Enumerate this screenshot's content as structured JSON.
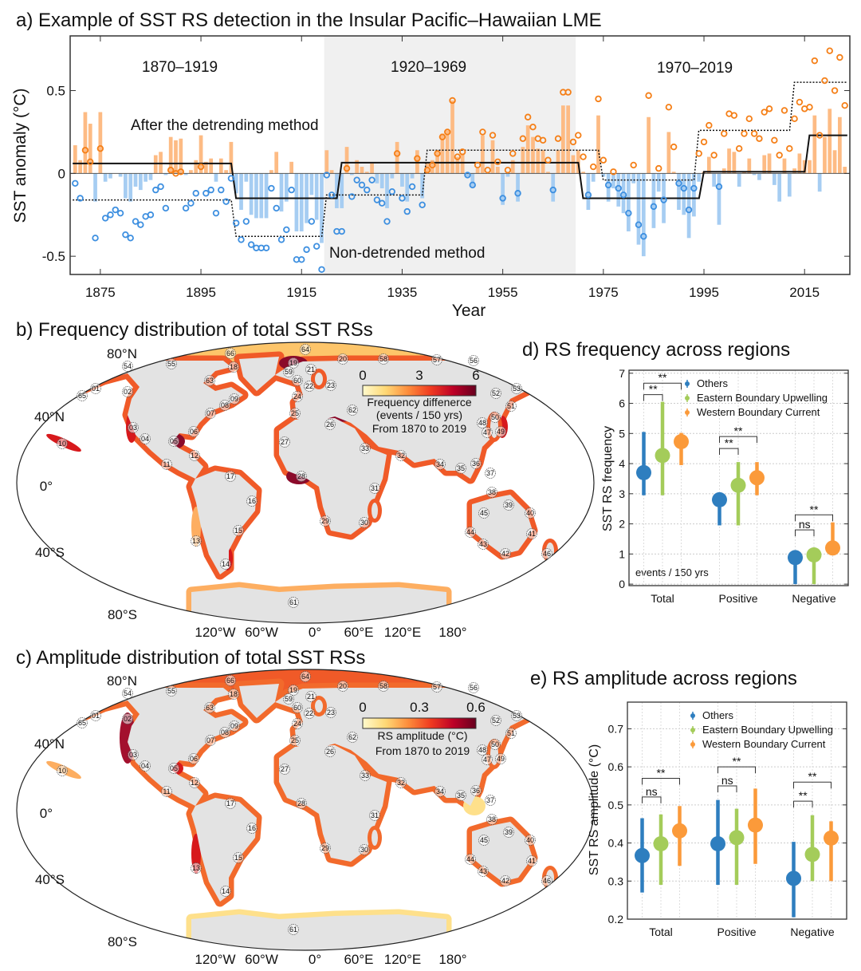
{
  "panels": {
    "a": {
      "title": "a) Example of SST RS detection in the Insular Pacific–Hawaiian LME"
    },
    "b": {
      "title": "b) Frequency distribution of total SST RSs"
    },
    "c": {
      "title": "c) Amplitude distribution of total SST RSs"
    },
    "d": {
      "title": "d) RS frequency across regions"
    },
    "e": {
      "title": "e) RS amplitude across regions"
    }
  },
  "maps": {
    "lat_labels": [
      "80°N",
      "40°N",
      "0°",
      "40°S",
      "80°S"
    ],
    "lon_labels": [
      "120°W",
      "60°W",
      "0°",
      "60°E",
      "120°E",
      "180°"
    ],
    "lme_labels": [
      "01",
      "02",
      "03",
      "04",
      "05",
      "06",
      "07",
      "08",
      "09",
      "10",
      "11",
      "12",
      "13",
      "14",
      "15",
      "16",
      "17",
      "18",
      "19",
      "20",
      "21",
      "22",
      "23",
      "24",
      "25",
      "26",
      "27",
      "28",
      "29",
      "30",
      "31",
      "32",
      "33",
      "34",
      "35",
      "36",
      "37",
      "38",
      "39",
      "40",
      "41",
      "42",
      "43",
      "44",
      "45",
      "46",
      "47",
      "48",
      "49",
      "50",
      "51",
      "52",
      "53",
      "54",
      "55",
      "56",
      "57",
      "58",
      "59",
      "60",
      "61",
      "62",
      "63",
      "64",
      "65",
      "66"
    ],
    "b": {
      "colorbar": {
        "ticks": [
          "0",
          "3",
          "6"
        ],
        "label1": "Frequency diffenerce",
        "label2": "(events / 150 yrs)",
        "label3": "From 1870 to 2019",
        "range": [
          0,
          6
        ]
      },
      "colors": {
        "arctic": "#fdc56a",
        "coast": "#f05a28",
        "dark": "#8b0a2a",
        "light": "#fdae61"
      }
    },
    "c": {
      "colorbar": {
        "ticks": [
          "0",
          "0.3",
          "0.6"
        ],
        "label1": "RS amplitude (°C)",
        "label2": "From 1870 to 2019",
        "range": [
          0,
          0.6
        ]
      },
      "colors": {
        "arctic": "#f05a28",
        "coast": "#f26a2c",
        "dark": "#a3102e",
        "light": "#fee08b"
      }
    },
    "colorbar_colors": [
      "#fffacd",
      "#fed976",
      "#fd8d3c",
      "#f03b20",
      "#bd0026",
      "#67001f"
    ]
  },
  "chart_data": [
    {
      "type": "bar",
      "title": "a) Example of SST RS detection in the Insular Pacific–Hawaiian LME",
      "xlabel": "Year",
      "ylabel": "SST anomaly (°C)",
      "xlim": [
        1869,
        2024
      ],
      "ylim": [
        -0.61,
        0.83
      ],
      "xticks": [
        1875,
        1895,
        1915,
        1935,
        1955,
        1975,
        1995,
        2015
      ],
      "yticks": [
        {
          "v": -0.5,
          "label": "-0.5"
        },
        {
          "v": 0,
          "label": "0"
        },
        {
          "v": 0.5,
          "label": "0.5"
        }
      ],
      "periods": [
        "1870–1919",
        "1920–1969",
        "1970–2019"
      ],
      "shaded_period": [
        1920,
        1969
      ],
      "annotations": {
        "detrended": "After the detrending method",
        "nondetrended": "Non-detrended method"
      },
      "colors": {
        "positive_bar": "#fdbb84",
        "negative_bar": "#a6cdf2",
        "positive_point": "#f57f17",
        "negative_point": "#3d8fe0",
        "shade": "#f0f0f0"
      },
      "columns": [
        "year",
        "detrended_anomaly_bar",
        "nondetrended_anomaly_point"
      ],
      "records": [
        [
          1870,
          0.17,
          -0.06
        ],
        [
          1871,
          0.08,
          -0.15
        ],
        [
          1872,
          0.37,
          0.14
        ],
        [
          1873,
          0.3,
          0.07
        ],
        [
          1874,
          -0.17,
          -0.39
        ],
        [
          1875,
          0.37,
          0.15
        ],
        [
          1876,
          -0.05,
          -0.27
        ],
        [
          1877,
          -0.03,
          -0.25
        ],
        [
          1878,
          0.0,
          -0.22
        ],
        [
          1879,
          -0.02,
          -0.24
        ],
        [
          1880,
          -0.15,
          -0.37
        ],
        [
          1881,
          -0.17,
          -0.39
        ],
        [
          1882,
          -0.08,
          -0.29
        ],
        [
          1883,
          -0.1,
          -0.31
        ],
        [
          1884,
          -0.05,
          -0.26
        ],
        [
          1885,
          -0.04,
          -0.25
        ],
        [
          1886,
          0.11,
          -0.1
        ],
        [
          1887,
          0.13,
          -0.08
        ],
        [
          1888,
          -0.01,
          -0.21
        ],
        [
          1889,
          0.22,
          0.02
        ],
        [
          1890,
          0.2,
          0.0
        ],
        [
          1891,
          0.21,
          0.01
        ],
        [
          1892,
          -0.01,
          -0.21
        ],
        [
          1893,
          0.02,
          -0.18
        ],
        [
          1894,
          0.08,
          -0.12
        ],
        [
          1895,
          0.23,
          0.04
        ],
        [
          1896,
          0.07,
          -0.12
        ],
        [
          1897,
          0.09,
          -0.1
        ],
        [
          1898,
          -0.05,
          -0.24
        ],
        [
          1899,
          0.09,
          -0.1
        ],
        [
          1900,
          0.02,
          -0.17
        ],
        [
          1901,
          0.19,
          -0.03
        ],
        [
          1902,
          -0.12,
          -0.3
        ],
        [
          1903,
          -0.22,
          -0.4
        ],
        [
          1904,
          -0.05,
          -0.29
        ],
        [
          1905,
          -0.25,
          -0.43
        ],
        [
          1906,
          -0.27,
          -0.45
        ],
        [
          1907,
          -0.27,
          -0.45
        ],
        [
          1908,
          -0.27,
          -0.45
        ],
        [
          1909,
          0.02,
          -0.09
        ],
        [
          1910,
          0.13,
          -0.21
        ],
        [
          1911,
          -0.23,
          -0.4
        ],
        [
          1912,
          -0.17,
          -0.34
        ],
        [
          1913,
          0.07,
          -0.1
        ],
        [
          1914,
          -0.35,
          -0.52
        ],
        [
          1915,
          -0.35,
          -0.52
        ],
        [
          1916,
          -0.3,
          -0.46
        ],
        [
          1917,
          -0.13,
          -0.29
        ],
        [
          1918,
          -0.28,
          -0.44
        ],
        [
          1919,
          -0.42,
          -0.58
        ],
        [
          1920,
          0.14,
          -0.01
        ],
        [
          1921,
          0.02,
          -0.13
        ],
        [
          1922,
          -0.21,
          -0.35
        ],
        [
          1923,
          -0.21,
          -0.35
        ],
        [
          1924,
          0.16,
          0.03
        ],
        [
          1925,
          -0.01,
          -0.14
        ],
        [
          1926,
          0.08,
          -0.04
        ],
        [
          1927,
          0.04,
          -0.07
        ],
        [
          1928,
          0.01,
          -0.1
        ],
        [
          1929,
          0.06,
          -0.04
        ],
        [
          1930,
          -0.06,
          -0.16
        ],
        [
          1931,
          -0.09,
          -0.18
        ],
        [
          1932,
          -0.21,
          -0.29
        ],
        [
          1933,
          -0.03,
          -0.11
        ],
        [
          1934,
          0.19,
          0.12
        ],
        [
          1935,
          -0.08,
          -0.15
        ],
        [
          1936,
          -0.17,
          -0.23
        ],
        [
          1937,
          -0.03,
          -0.08
        ],
        [
          1938,
          0.14,
          0.09
        ],
        [
          1939,
          -0.15,
          -0.19
        ],
        [
          1940,
          0.06,
          0.02
        ],
        [
          1941,
          0.08,
          0.05
        ],
        [
          1942,
          0.14,
          0.12
        ],
        [
          1943,
          0.24,
          0.22
        ],
        [
          1944,
          0.26,
          0.25
        ],
        [
          1945,
          0.44,
          0.44
        ],
        [
          1946,
          0.1,
          0.1
        ],
        [
          1947,
          0.12,
          0.13
        ],
        [
          1948,
          -0.02,
          -0.01
        ],
        [
          1949,
          -0.08,
          -0.07
        ],
        [
          1950,
          0.03,
          0.05
        ],
        [
          1951,
          0.23,
          0.25
        ],
        [
          1952,
          0.0,
          0.02
        ],
        [
          1953,
          0.2,
          0.23
        ],
        [
          1954,
          0.04,
          0.07
        ],
        [
          1955,
          -0.19,
          -0.15
        ],
        [
          1956,
          -0.02,
          0.02
        ],
        [
          1957,
          0.08,
          0.12
        ],
        [
          1958,
          -0.17,
          -0.12
        ],
        [
          1959,
          0.16,
          0.21
        ],
        [
          1960,
          0.29,
          0.34
        ],
        [
          1961,
          0.22,
          0.28
        ],
        [
          1962,
          0.15,
          0.21
        ],
        [
          1963,
          0.14,
          0.2
        ],
        [
          1964,
          0.01,
          0.08
        ],
        [
          1965,
          -0.17,
          -0.1
        ],
        [
          1966,
          0.14,
          0.21
        ],
        [
          1967,
          0.41,
          0.49
        ],
        [
          1968,
          0.41,
          0.49
        ],
        [
          1969,
          0.11,
          0.19
        ],
        [
          1970,
          0.14,
          0.23
        ],
        [
          1971,
          0.01,
          0.1
        ],
        [
          1972,
          -0.22,
          -0.13
        ],
        [
          1973,
          -0.05,
          0.04
        ],
        [
          1974,
          0.35,
          0.45
        ],
        [
          1975,
          -0.02,
          0.08
        ],
        [
          1976,
          -0.17,
          -0.07
        ],
        [
          1977,
          -0.09,
          0.01
        ],
        [
          1978,
          -0.2,
          -0.09
        ],
        [
          1979,
          -0.24,
          -0.13
        ],
        [
          1980,
          -0.35,
          -0.24
        ],
        [
          1981,
          -0.06,
          0.05
        ],
        [
          1982,
          -0.43,
          -0.31
        ],
        [
          1983,
          -0.5,
          -0.38
        ],
        [
          1984,
          0.34,
          0.47
        ],
        [
          1985,
          -0.33,
          -0.2
        ],
        [
          1986,
          -0.11,
          0.03
        ],
        [
          1987,
          -0.3,
          -0.16
        ],
        [
          1988,
          0.25,
          0.4
        ],
        [
          1989,
          0.01,
          0.16
        ],
        [
          1990,
          -0.22,
          -0.06
        ],
        [
          1991,
          -0.25,
          -0.09
        ],
        [
          1992,
          -0.39,
          -0.22
        ],
        [
          1993,
          -0.26,
          -0.09
        ],
        [
          1994,
          -0.05,
          0.12
        ],
        [
          1995,
          0.01,
          0.19
        ],
        [
          1996,
          0.1,
          0.29
        ],
        [
          1997,
          -0.08,
          0.11
        ],
        [
          1998,
          -0.31,
          -0.08
        ],
        [
          1999,
          0.03,
          0.24
        ],
        [
          2000,
          0.15,
          0.36
        ],
        [
          2001,
          0.13,
          0.35
        ],
        [
          2002,
          -0.08,
          0.15
        ],
        [
          2003,
          0.01,
          0.24
        ],
        [
          2004,
          0.09,
          0.33
        ],
        [
          2005,
          -0.01,
          0.24
        ],
        [
          2006,
          -0.04,
          0.21
        ],
        [
          2007,
          0.11,
          0.37
        ],
        [
          2008,
          0.12,
          0.39
        ],
        [
          2009,
          -0.07,
          0.2
        ],
        [
          2010,
          -0.17,
          0.11
        ],
        [
          2011,
          0.09,
          0.38
        ],
        [
          2012,
          -0.14,
          0.15
        ],
        [
          2013,
          0.03,
          0.33
        ],
        [
          2014,
          0.12,
          0.43
        ],
        [
          2015,
          0.08,
          0.39
        ],
        [
          2016,
          0.08,
          0.4
        ],
        [
          2017,
          0.35,
          0.68
        ],
        [
          2018,
          -0.11,
          0.23
        ],
        [
          2019,
          0.22,
          0.56
        ],
        [
          2020,
          0.39,
          0.74
        ],
        [
          2021,
          0.14,
          0.5
        ],
        [
          2022,
          0.34,
          0.7
        ],
        [
          2023,
          0.04,
          0.41
        ]
      ],
      "regime_means_detrended": [
        [
          1870,
          1901,
          0.06
        ],
        [
          1902,
          1922,
          -0.15
        ],
        [
          1923,
          1970,
          0.065
        ],
        [
          1971,
          1994,
          -0.15
        ],
        [
          1995,
          2015,
          0.01
        ],
        [
          2016,
          2023,
          0.23
        ]
      ],
      "regime_means_nondetrended": [
        [
          1870,
          1901,
          -0.16
        ],
        [
          1902,
          1919,
          -0.38
        ],
        [
          1920,
          1939,
          -0.13
        ],
        [
          1940,
          1974,
          0.14
        ],
        [
          1975,
          1993,
          -0.04
        ],
        [
          1994,
          2012,
          0.26
        ],
        [
          2013,
          2023,
          0.55
        ]
      ]
    },
    {
      "type": "scatter",
      "title": "d) RS frequency across regions",
      "ylabel": "SST RS frequency",
      "note": "events / 150 yrs",
      "categories": [
        "Total",
        "Positive",
        "Negative"
      ],
      "ylim": [
        -0.05,
        7.1
      ],
      "yticks": [
        0,
        1,
        2,
        3,
        4,
        5,
        6,
        7
      ],
      "grid": true,
      "legend": "top-right",
      "series": [
        {
          "name": "Others",
          "color": "#2e7ebf",
          "values": [
            3.7,
            2.8,
            0.88
          ],
          "low": [
            2.95,
            1.95,
            0.0
          ],
          "high": [
            5.05,
            2.95,
            1.0
          ]
        },
        {
          "name": "Eastern Boundary Upwelling",
          "color": "#a4cc5a",
          "values": [
            4.27,
            3.28,
            0.97
          ],
          "low": [
            2.95,
            1.95,
            0.0
          ],
          "high": [
            6.05,
            4.05,
            1.05
          ]
        },
        {
          "name": "Western Boundary Current",
          "color": "#fb9a3a",
          "values": [
            4.73,
            3.53,
            1.2
          ],
          "low": [
            3.95,
            2.95,
            1.0
          ],
          "high": [
            5.02,
            4.05,
            2.05
          ]
        }
      ],
      "significance": [
        {
          "vs_ebu": "**",
          "vs_wbc": "**"
        },
        {
          "vs_ebu": "**",
          "vs_wbc": "**"
        },
        {
          "vs_ebu": "ns",
          "vs_wbc": "**"
        }
      ]
    },
    {
      "type": "scatter",
      "title": "e) RS amplitude across regions",
      "ylabel": "SST RS amplitude (°C)",
      "categories": [
        "Total",
        "Positive",
        "Negative"
      ],
      "ylim": [
        0.2,
        0.77
      ],
      "yticks": [
        0.2,
        0.3,
        0.4,
        0.5,
        0.6,
        0.7
      ],
      "grid": true,
      "legend": "top-center",
      "series": [
        {
          "name": "Others",
          "color": "#2e7ebf",
          "values": [
            0.367,
            0.398,
            0.307
          ],
          "low": [
            0.27,
            0.29,
            0.205
          ],
          "high": [
            0.465,
            0.513,
            0.403
          ]
        },
        {
          "name": "Eastern Boundary Upwelling",
          "color": "#a4cc5a",
          "values": [
            0.398,
            0.414,
            0.37
          ],
          "low": [
            0.29,
            0.29,
            0.3
          ],
          "high": [
            0.475,
            0.49,
            0.473
          ]
        },
        {
          "name": "Western Boundary Current",
          "color": "#fb9a3a",
          "values": [
            0.432,
            0.447,
            0.413
          ],
          "low": [
            0.34,
            0.345,
            0.3
          ],
          "high": [
            0.497,
            0.543,
            0.457
          ]
        }
      ],
      "significance": [
        {
          "vs_ebu": "ns",
          "vs_wbc": "**"
        },
        {
          "vs_ebu": "ns",
          "vs_wbc": "**"
        },
        {
          "vs_ebu": "**",
          "vs_wbc": "**"
        }
      ]
    }
  ]
}
